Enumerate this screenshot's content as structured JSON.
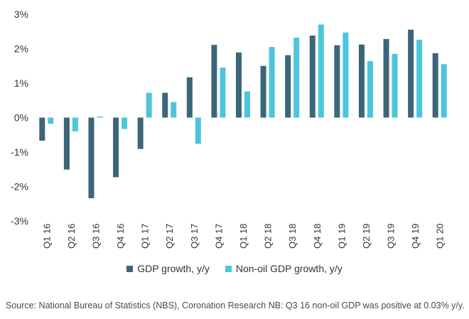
{
  "chart_data": {
    "type": "bar",
    "categories": [
      "Q1 16",
      "Q2 16",
      "Q3 16",
      "Q4 16",
      "Q1 17",
      "Q2 17",
      "Q3 17",
      "Q4 17",
      "Q1 18",
      "Q2 18",
      "Q3 18",
      "Q4 18",
      "Q1 19",
      "Q2 19",
      "Q3 19",
      "Q4 19",
      "Q1 20"
    ],
    "series": [
      {
        "name": "GDP growth, y/y",
        "color": "#3c6679",
        "values": [
          -0.67,
          -1.51,
          -2.34,
          -1.73,
          -0.91,
          0.72,
          1.17,
          2.11,
          1.89,
          1.5,
          1.81,
          2.38,
          2.1,
          2.12,
          2.28,
          2.55,
          1.87
        ]
      },
      {
        "name": "Non-oil GDP growth, y/y",
        "color": "#4cc5dc",
        "values": [
          -0.18,
          -0.4,
          0.03,
          -0.33,
          0.72,
          0.45,
          -0.76,
          1.45,
          0.76,
          2.05,
          2.32,
          2.7,
          2.47,
          1.64,
          1.85,
          2.26,
          1.55
        ]
      }
    ],
    "ylim": [
      -3,
      3
    ],
    "yticks": [
      "-3%",
      "-2%",
      "-1%",
      "0%",
      "1%",
      "2%",
      "3%"
    ],
    "grid": false,
    "legend_position": "bottom"
  },
  "source_text": "Source: National Bureau of Statistics (NBS), Coronation Research NB: Q3 16 non-oil GDP was positive at 0.03% y/y."
}
